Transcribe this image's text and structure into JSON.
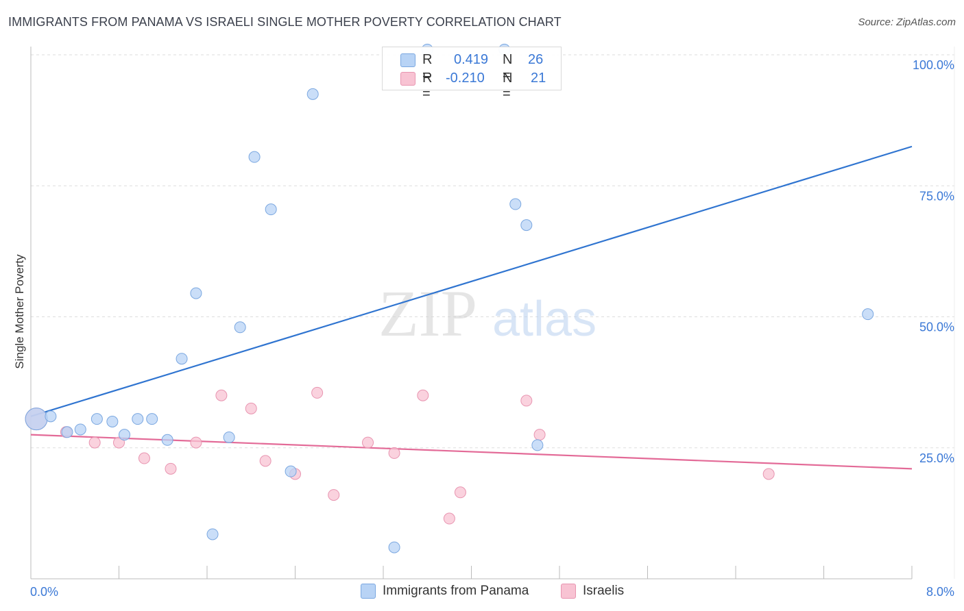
{
  "title": "IMMIGRANTS FROM PANAMA VS ISRAELI SINGLE MOTHER POVERTY CORRELATION CHART",
  "source": "Source: ZipAtlas.com",
  "watermark": {
    "zip": "ZIP",
    "atlas": "atlas"
  },
  "colors": {
    "blue_fill": "#b8d3f5",
    "blue_stroke": "#7aa7e0",
    "blue_line": "#2f74d0",
    "pink_fill": "#f8c3d3",
    "pink_stroke": "#e894b0",
    "pink_line": "#e36a97",
    "axis_text": "#3a78d6",
    "grid": "#dddddd"
  },
  "legend_box": {
    "rows": [
      {
        "r_label": "R =",
        "r_value": "0.419",
        "n_label": "N =",
        "n_value": "26",
        "series": "blue"
      },
      {
        "r_label": "R =",
        "r_value": "-0.210",
        "n_label": "N =",
        "n_value": "21",
        "series": "pink"
      }
    ]
  },
  "bottom_legend": {
    "series1": "Immigrants from Panama",
    "series2": "Israelis"
  },
  "chart_data": {
    "type": "scatter",
    "title": "IMMIGRANTS FROM PANAMA VS ISRAELI SINGLE MOTHER POVERTY CORRELATION CHART",
    "xlabel": "",
    "ylabel": "Single Mother Poverty",
    "xlim": [
      0,
      8
    ],
    "ylim": [
      0,
      102
    ],
    "x_tick_labels": [
      "0.0%",
      "8.0%"
    ],
    "y_ticks": [
      25,
      50,
      75,
      100
    ],
    "y_tick_labels": [
      "25.0%",
      "50.0%",
      "75.0%",
      "100.0%"
    ],
    "series": [
      {
        "name": "Immigrants from Panama",
        "color": "blue",
        "points": [
          [
            0.05,
            30.5,
            "big"
          ],
          [
            0.18,
            31
          ],
          [
            0.33,
            28
          ],
          [
            0.45,
            28.5
          ],
          [
            0.6,
            30.5
          ],
          [
            0.74,
            30
          ],
          [
            0.85,
            27.5
          ],
          [
            0.97,
            30.5
          ],
          [
            1.1,
            30.5
          ],
          [
            1.24,
            26.5
          ],
          [
            1.37,
            42
          ],
          [
            1.5,
            54.5
          ],
          [
            1.65,
            8.5
          ],
          [
            1.8,
            27
          ],
          [
            1.9,
            48
          ],
          [
            2.03,
            80.5
          ],
          [
            2.18,
            70.5
          ],
          [
            2.36,
            20.5
          ],
          [
            2.56,
            92.5
          ],
          [
            3.3,
            6
          ],
          [
            3.6,
            101
          ],
          [
            4.3,
            101
          ],
          [
            4.4,
            71.5
          ],
          [
            4.5,
            67.5
          ],
          [
            4.6,
            25.5
          ],
          [
            7.6,
            50.5
          ]
        ],
        "trend": [
          [
            0,
            31
          ],
          [
            8,
            82.5
          ]
        ]
      },
      {
        "name": "Israelis",
        "color": "pink",
        "points": [
          [
            0.05,
            30.5,
            "big"
          ],
          [
            0.32,
            28
          ],
          [
            0.58,
            26
          ],
          [
            0.8,
            26
          ],
          [
            1.03,
            23
          ],
          [
            1.27,
            21
          ],
          [
            1.5,
            26
          ],
          [
            1.73,
            35
          ],
          [
            2.0,
            32.5
          ],
          [
            2.13,
            22.5
          ],
          [
            2.4,
            20
          ],
          [
            2.6,
            35.5
          ],
          [
            2.75,
            16
          ],
          [
            3.06,
            26
          ],
          [
            3.3,
            24
          ],
          [
            3.56,
            35
          ],
          [
            3.8,
            11.5
          ],
          [
            3.9,
            16.5
          ],
          [
            4.5,
            34
          ],
          [
            4.62,
            27.5
          ],
          [
            6.7,
            20
          ]
        ],
        "trend": [
          [
            0,
            27.5
          ],
          [
            8,
            21
          ]
        ]
      }
    ]
  }
}
